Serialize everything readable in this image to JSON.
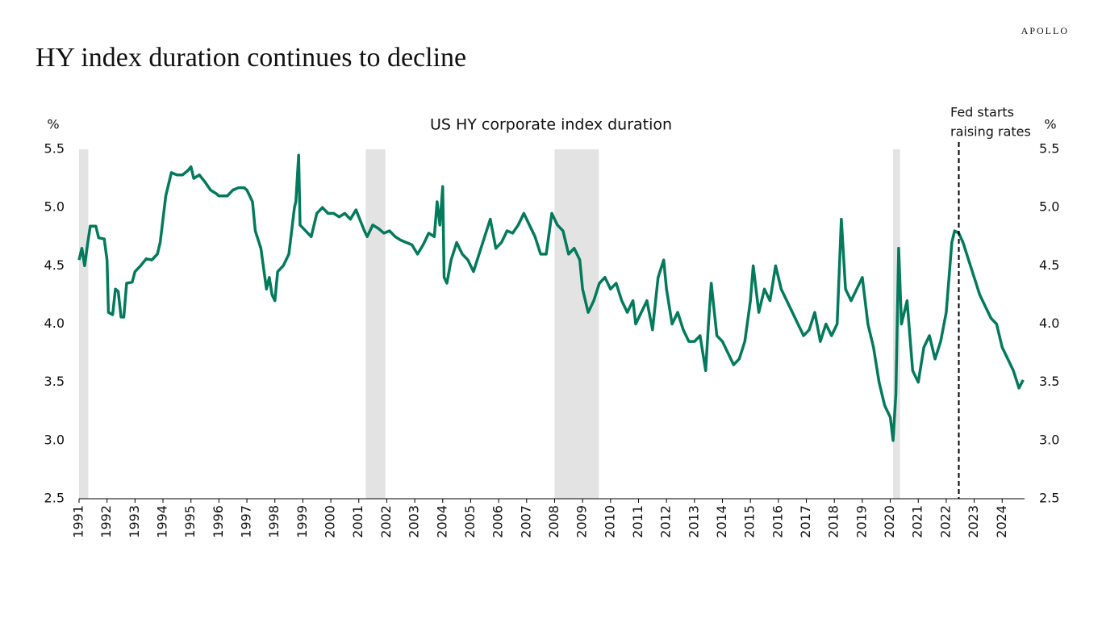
{
  "brand": "APOLLO",
  "chart_data": {
    "type": "line",
    "title": "HY index duration continues to decline",
    "subtitle": "US HY corporate index duration",
    "y_label": "%",
    "y2_label": "%",
    "x": [
      1991.0,
      1991.1,
      1991.2,
      1991.3,
      1991.4,
      1991.6,
      1991.7,
      1991.9,
      1992.0,
      1992.05,
      1992.2,
      1992.3,
      1992.4,
      1992.5,
      1992.6,
      1992.7,
      1992.9,
      1993.0,
      1993.2,
      1993.4,
      1993.6,
      1993.8,
      1993.9,
      1994.0,
      1994.1,
      1994.2,
      1994.3,
      1994.5,
      1994.7,
      1994.9,
      1995.0,
      1995.1,
      1995.3,
      1995.5,
      1995.7,
      1995.9,
      1996.0,
      1996.3,
      1996.5,
      1996.7,
      1996.9,
      1997.0,
      1997.2,
      1997.3,
      1997.5,
      1997.7,
      1997.8,
      1997.9,
      1998.0,
      1998.1,
      1998.3,
      1998.5,
      1998.6,
      1998.7,
      1998.75,
      1998.85,
      1998.9,
      1999.1,
      1999.3,
      1999.5,
      1999.7,
      1999.9,
      2000.1,
      2000.3,
      2000.5,
      2000.7,
      2000.9,
      2001.0,
      2001.2,
      2001.3,
      2001.5,
      2001.7,
      2001.9,
      2002.1,
      2002.3,
      2002.5,
      2002.7,
      2002.9,
      2003.1,
      2003.3,
      2003.5,
      2003.7,
      2003.8,
      2003.9,
      2004.0,
      2004.05,
      2004.15,
      2004.3,
      2004.5,
      2004.7,
      2004.9,
      2005.1,
      2005.3,
      2005.5,
      2005.7,
      2005.9,
      2006.1,
      2006.3,
      2006.5,
      2006.7,
      2006.9,
      2007.1,
      2007.3,
      2007.5,
      2007.7,
      2007.9,
      2008.1,
      2008.3,
      2008.5,
      2008.7,
      2008.9,
      2009.0,
      2009.2,
      2009.4,
      2009.6,
      2009.8,
      2010.0,
      2010.2,
      2010.4,
      2010.6,
      2010.8,
      2010.9,
      2011.1,
      2011.3,
      2011.5,
      2011.7,
      2011.9,
      2012.0,
      2012.2,
      2012.4,
      2012.6,
      2012.8,
      2013.0,
      2013.2,
      2013.4,
      2013.5,
      2013.6,
      2013.8,
      2014.0,
      2014.2,
      2014.4,
      2014.6,
      2014.8,
      2015.0,
      2015.1,
      2015.3,
      2015.5,
      2015.7,
      2015.9,
      2016.1,
      2016.3,
      2016.5,
      2016.7,
      2016.9,
      2017.1,
      2017.3,
      2017.5,
      2017.7,
      2017.9,
      2018.1,
      2018.25,
      2018.4,
      2018.6,
      2018.8,
      2019.0,
      2019.2,
      2019.4,
      2019.6,
      2019.8,
      2020.0,
      2020.1,
      2020.2,
      2020.3,
      2020.4,
      2020.6,
      2020.8,
      2021.0,
      2021.2,
      2021.4,
      2021.6,
      2021.8,
      2022.0,
      2022.1,
      2022.2,
      2022.3,
      2022.45,
      2022.6,
      2022.8,
      2023.0,
      2023.2,
      2023.4,
      2023.6,
      2023.8,
      2024.0,
      2024.2,
      2024.4,
      2024.6,
      2024.75
    ],
    "series": [
      {
        "name": "US HY corporate index duration",
        "color": "#037a5c",
        "values": [
          4.55,
          4.65,
          4.5,
          4.68,
          4.84,
          4.84,
          4.74,
          4.73,
          4.55,
          4.1,
          4.08,
          4.3,
          4.28,
          4.06,
          4.06,
          4.35,
          4.36,
          4.45,
          4.5,
          4.56,
          4.55,
          4.6,
          4.7,
          4.9,
          5.1,
          5.2,
          5.3,
          5.28,
          5.28,
          5.32,
          5.35,
          5.25,
          5.28,
          5.22,
          5.15,
          5.12,
          5.1,
          5.1,
          5.15,
          5.17,
          5.17,
          5.15,
          5.05,
          4.8,
          4.65,
          4.3,
          4.4,
          4.25,
          4.2,
          4.45,
          4.5,
          4.6,
          4.8,
          5.0,
          5.05,
          5.45,
          4.85,
          4.8,
          4.75,
          4.95,
          5.0,
          4.95,
          4.95,
          4.92,
          4.95,
          4.9,
          4.98,
          4.92,
          4.8,
          4.75,
          4.85,
          4.82,
          4.78,
          4.8,
          4.75,
          4.72,
          4.7,
          4.68,
          4.6,
          4.68,
          4.78,
          4.75,
          5.05,
          4.85,
          5.18,
          4.4,
          4.35,
          4.55,
          4.7,
          4.6,
          4.55,
          4.45,
          4.6,
          4.75,
          4.9,
          4.65,
          4.7,
          4.8,
          4.78,
          4.85,
          4.95,
          4.85,
          4.75,
          4.6,
          4.6,
          4.95,
          4.85,
          4.8,
          4.6,
          4.65,
          4.55,
          4.3,
          4.1,
          4.2,
          4.35,
          4.4,
          4.3,
          4.35,
          4.2,
          4.1,
          4.2,
          4.0,
          4.1,
          4.2,
          3.95,
          4.4,
          4.55,
          4.3,
          4.0,
          4.1,
          3.95,
          3.85,
          3.85,
          3.9,
          3.6,
          4.0,
          4.35,
          3.9,
          3.85,
          3.75,
          3.65,
          3.7,
          3.85,
          4.2,
          4.5,
          4.1,
          4.3,
          4.2,
          4.5,
          4.3,
          4.2,
          4.1,
          4.0,
          3.9,
          3.95,
          4.1,
          3.85,
          4.0,
          3.9,
          4.0,
          4.9,
          4.3,
          4.2,
          4.3,
          4.4,
          4.0,
          3.8,
          3.5,
          3.3,
          3.2,
          3.0,
          3.4,
          4.65,
          4.0,
          4.2,
          3.6,
          3.5,
          3.8,
          3.9,
          3.7,
          3.85,
          4.1,
          4.4,
          4.7,
          4.8,
          4.78,
          4.7,
          4.55,
          4.4,
          4.25,
          4.15,
          4.05,
          4.0,
          3.8,
          3.7,
          3.6,
          3.45,
          3.52
        ]
      }
    ],
    "xlim": [
      1991,
      2024.8
    ],
    "xticks": [
      1991,
      1992,
      1993,
      1994,
      1995,
      1996,
      1997,
      1998,
      1999,
      2000,
      2001,
      2002,
      2003,
      2004,
      2005,
      2006,
      2007,
      2008,
      2009,
      2010,
      2011,
      2012,
      2013,
      2014,
      2015,
      2016,
      2017,
      2018,
      2019,
      2020,
      2021,
      2022,
      2023,
      2024
    ],
    "ylim": [
      2.5,
      5.5
    ],
    "yticks": [
      2.5,
      {
        "value": 3,
        "label": "3.0"
      },
      3.5,
      {
        "value": 4,
        "label": "4.0"
      },
      4.5,
      {
        "value": 5,
        "label": "5.0"
      },
      5.5
    ],
    "y2lim": [
      2.5,
      5.5
    ],
    "y2ticks": [
      2.5,
      {
        "value": 3,
        "label": "3.0"
      },
      3.5,
      {
        "value": 4,
        "label": "4.0"
      },
      4.5,
      {
        "value": 5,
        "label": "5.0"
      },
      5.5
    ],
    "recessions": [
      [
        1991.0,
        1991.33
      ],
      [
        2001.25,
        2001.95
      ],
      [
        2008.0,
        2009.58
      ],
      [
        2020.1,
        2020.35
      ]
    ],
    "recession_color": "#e3e3e3",
    "annotation": {
      "text": [
        "Fed starts",
        "raising rates"
      ],
      "x": 2022.45
    }
  }
}
